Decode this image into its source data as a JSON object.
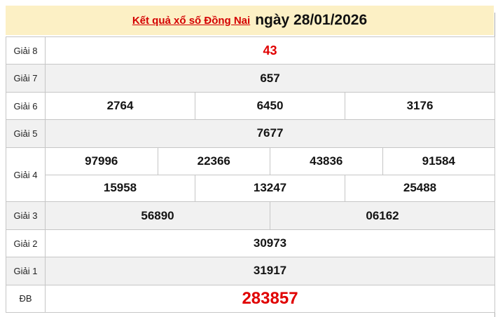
{
  "header": {
    "title_link": "Kết quả xổ số Đồng Nai",
    "title_date": "ngày 28/01/2026"
  },
  "colors": {
    "header_background": "#fcf0c5",
    "link_red": "#d40000",
    "highlight_red": "#e00000",
    "row_gray": "#f1f1f1",
    "border_gray": "#c6c6c6",
    "text_black": "#141414"
  },
  "table": {
    "rows": [
      {
        "label": "Giải 8",
        "highlight": true,
        "cells": [
          "43"
        ]
      },
      {
        "label": "Giải 7",
        "highlight": false,
        "cells": [
          "657"
        ]
      },
      {
        "label": "Giải 6",
        "highlight": false,
        "cells": [
          "2764",
          "6450",
          "3176"
        ]
      },
      {
        "label": "Giải 5",
        "highlight": false,
        "cells": [
          "7677"
        ]
      },
      {
        "label": "Giải 4",
        "highlight": false,
        "lines": [
          [
            "97996",
            "22366",
            "43836",
            "91584"
          ],
          [
            "15958",
            "13247",
            "25488"
          ]
        ]
      },
      {
        "label": "Giải 3",
        "highlight": false,
        "cells": [
          "56890",
          "06162"
        ]
      },
      {
        "label": "Giải 2",
        "highlight": false,
        "cells": [
          "30973"
        ]
      },
      {
        "label": "Giải 1",
        "highlight": false,
        "cells": [
          "31917"
        ]
      },
      {
        "label": "ĐB",
        "highlight": true,
        "cells": [
          "283857"
        ]
      }
    ]
  }
}
